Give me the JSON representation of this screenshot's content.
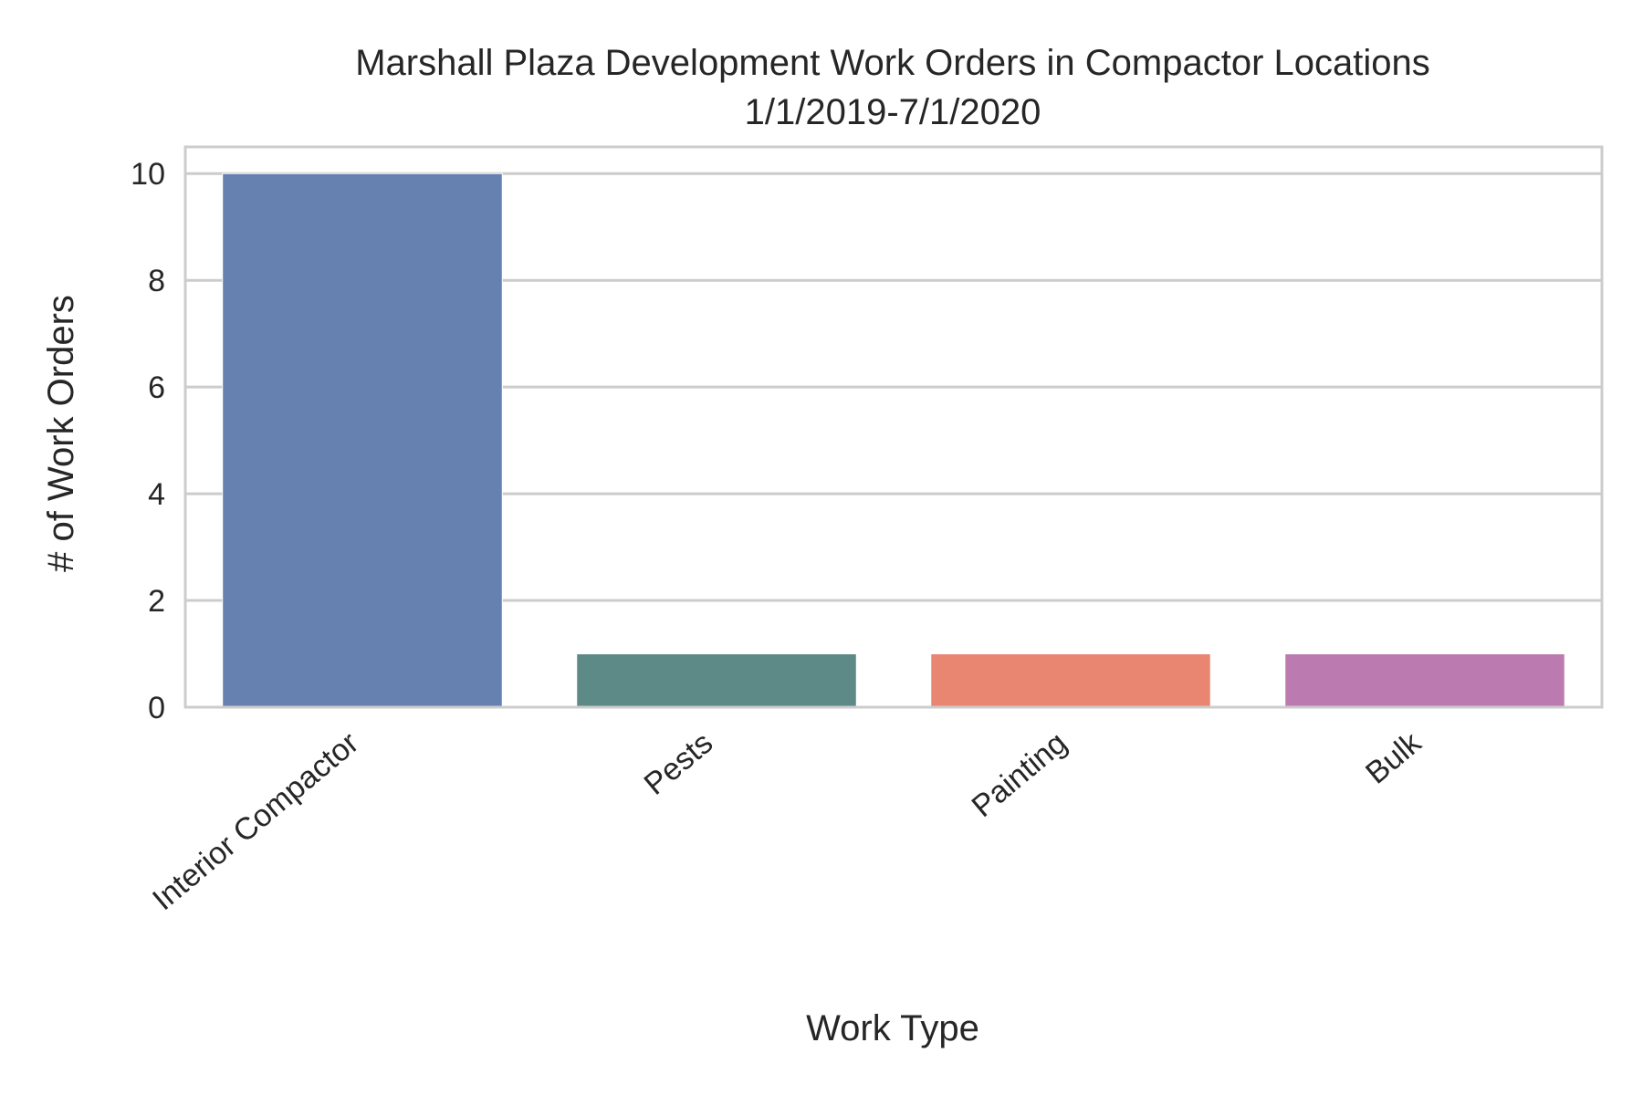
{
  "chart_data": {
    "type": "bar",
    "title": "Marshall Plaza Development Work Orders in Compactor Locations",
    "subtitle": "1/1/2019-7/1/2020",
    "xlabel": "Work Type",
    "ylabel": "# of Work Orders",
    "categories": [
      "Interior Compactor",
      "Pests",
      "Painting",
      "Bulk"
    ],
    "values": [
      10,
      1,
      1,
      1
    ],
    "colors": [
      "#6680b0",
      "#5d8a87",
      "#e88672",
      "#bc7bb0"
    ],
    "ylim": [
      0,
      10.5
    ],
    "yticks": [
      "0",
      "2",
      "4",
      "6",
      "8",
      "10"
    ],
    "grid": true,
    "legend": "none"
  }
}
